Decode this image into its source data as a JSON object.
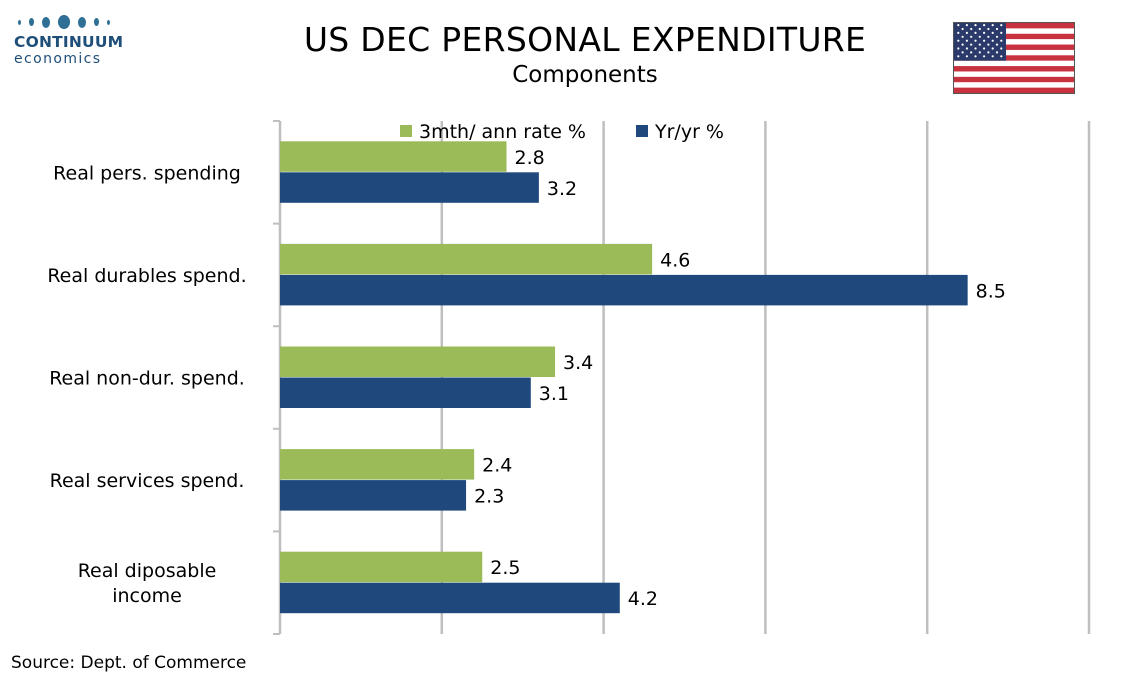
{
  "header": {
    "logo_line1": "CONTINUUM",
    "logo_line2": "economics",
    "title": "US DEC PERSONAL EXPENDITURE",
    "subtitle": "Components"
  },
  "source": "Source: Dept. of Commerce",
  "colors": {
    "series1": "#9bbb59",
    "series2": "#1f497d",
    "gridline": "#bfbfbf",
    "logo": "#1f4e79",
    "flag_red": "#c8313e",
    "flag_blue": "#2b3a6b"
  },
  "chart_data": {
    "type": "bar",
    "orientation": "horizontal",
    "title": "US DEC PERSONAL EXPENDITURE",
    "subtitle": "Components",
    "categories": [
      [
        "Real pers. spending"
      ],
      [
        "Real durables spend."
      ],
      [
        "Real non-dur. spend."
      ],
      [
        "Real services spend."
      ],
      [
        "Real diposable",
        "income"
      ]
    ],
    "series": [
      {
        "name": "3mth/ ann rate %",
        "values": [
          2.8,
          4.6,
          3.4,
          2.4,
          2.5
        ],
        "color": "#9bbb59"
      },
      {
        "name": "Yr/yr %",
        "values": [
          3.2,
          8.5,
          3.1,
          2.3,
          4.2
        ],
        "color": "#1f497d"
      }
    ],
    "xlim": [
      0,
      10
    ],
    "x_gridlines": [
      2,
      4,
      6,
      8,
      10
    ],
    "grid": true,
    "legend": "top",
    "data_labels": true
  }
}
